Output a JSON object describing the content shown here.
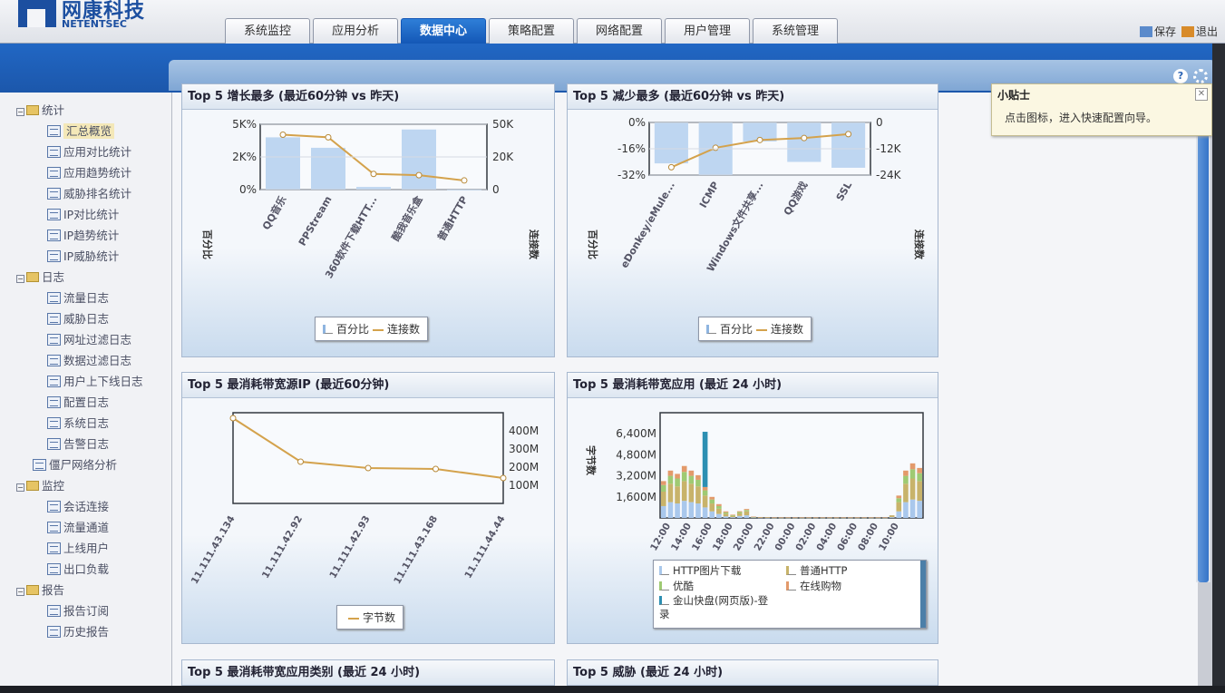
{
  "app": {
    "logo_cn": "网康科技",
    "logo_en": "NETENTSEC"
  },
  "nav": {
    "tabs": [
      {
        "label": "系统监控",
        "active": false
      },
      {
        "label": "应用分析",
        "active": false
      },
      {
        "label": "数据中心",
        "active": true
      },
      {
        "label": "策略配置",
        "active": false
      },
      {
        "label": "网络配置",
        "active": false
      },
      {
        "label": "用户管理",
        "active": false
      },
      {
        "label": "系统管理",
        "active": false
      }
    ],
    "save_label": "保存",
    "exit_label": "退出"
  },
  "sidebar": {
    "groups": [
      {
        "label": "统计",
        "items": [
          "汇总概览",
          "应用对比统计",
          "应用趋势统计",
          "威胁排名统计",
          "IP对比统计",
          "IP趋势统计",
          "IP威胁统计"
        ],
        "selected": 0
      },
      {
        "label": "日志",
        "items": [
          "流量日志",
          "威胁日志",
          "网址过滤日志",
          "数据过滤日志",
          "用户上下线日志",
          "配置日志",
          "系统日志",
          "告警日志"
        ]
      },
      {
        "label": "僵尸网络分析",
        "items": [],
        "leaf": true
      },
      {
        "label": "监控",
        "items": [
          "会话连接",
          "流量通道",
          "上线用户",
          "出口负载"
        ]
      },
      {
        "label": "报告",
        "items": [
          "报告订阅",
          "历史报告"
        ]
      }
    ]
  },
  "tooltip": {
    "title": "小贴士",
    "body": "点击图标，进入快速配置向导。"
  },
  "panels": {
    "p1": {
      "title": "Top 5 增长最多 (最近60分钟 vs 昨天)",
      "legend_bar": "百分比",
      "legend_line": "连接数",
      "left_axis": "百分比",
      "right_axis": "连接数"
    },
    "p2": {
      "title": "Top 5 减少最多 (最近60分钟 vs 昨天)",
      "legend_bar": "百分比",
      "legend_line": "连接数",
      "left_axis": "百分比",
      "right_axis": "连接数"
    },
    "p3": {
      "title": "Top 5 最消耗带宽源IP (最近60分钟)",
      "legend_line": "字节数"
    },
    "p4": {
      "title": "Top 5 最消耗带宽应用 (最近 24 小时)",
      "y_axis": "字节数",
      "legend": [
        "HTTP图片下载",
        "普通HTTP",
        "优酷",
        "在线购物",
        "金山快盘(网页版)-登录"
      ]
    },
    "p5": {
      "title": "Top 5 最消耗带宽应用类别 (最近 24 小时)"
    },
    "p6": {
      "title": "Top 5 威胁 (最近 24 小时)"
    }
  },
  "chart_data": [
    {
      "type": "bar",
      "title": "Top 5 增长最多 (最近60分钟 vs 昨天)",
      "categories": [
        "QQ音乐",
        "PPStream",
        "360软件下载HTT...",
        "酷我音乐盒",
        "普通HTTP"
      ],
      "series": [
        {
          "name": "百分比",
          "kind": "bar",
          "axis": "left",
          "values": [
            4000,
            3200,
            200,
            4600,
            0
          ]
        },
        {
          "name": "连接数",
          "kind": "line",
          "axis": "right",
          "values": [
            42000,
            40000,
            12000,
            11000,
            7000
          ]
        }
      ],
      "y_left_ticks": [
        "5K%",
        "2K%",
        "0%"
      ],
      "y_left_range": [
        0,
        5000
      ],
      "y_right_ticks": [
        "50K",
        "20K",
        "0"
      ],
      "y_right_range": [
        0,
        50000
      ],
      "ylabel_left": "百分比",
      "ylabel_right": "连接数"
    },
    {
      "type": "bar",
      "title": "Top 5 减少最多 (最近60分钟 vs 昨天)",
      "categories": [
        "eDonkey/eMule...",
        "ICMP",
        "Windows文件共享...",
        "QQ游戏",
        "SSL"
      ],
      "series": [
        {
          "name": "百分比",
          "kind": "bar",
          "axis": "left",
          "values": [
            -28,
            -36,
            -13,
            -27,
            -31
          ]
        },
        {
          "name": "连接数",
          "kind": "line",
          "axis": "right",
          "values": [
            -23000,
            -13000,
            -9000,
            -8000,
            -6000
          ]
        }
      ],
      "y_left_ticks": [
        "0%",
        "-16%",
        "-32%"
      ],
      "y_left_range": [
        -36,
        0
      ],
      "y_right_ticks": [
        "0",
        "-12K",
        "-24K"
      ],
      "y_right_range": [
        -27000,
        0
      ],
      "ylabel_left": "百分比",
      "ylabel_right": "连接数"
    },
    {
      "type": "line",
      "title": "Top 5 最消耗带宽源IP (最近60分钟)",
      "categories": [
        "11.111.43.134",
        "11.111.42.92",
        "11.111.42.93",
        "11.111.43.168",
        "11.111.44.44"
      ],
      "series": [
        {
          "name": "字节数",
          "values": [
            470,
            230,
            195,
            190,
            140
          ]
        }
      ],
      "y_ticks": [
        "400M",
        "300M",
        "200M",
        "100M"
      ],
      "y_range": [
        0,
        500
      ]
    },
    {
      "type": "bar",
      "stacked": true,
      "title": "Top 5 最消耗带宽应用 (最近 24 小时)",
      "ylabel": "字节数",
      "y_ticks": [
        "6,400M",
        "4,800M",
        "3,200M",
        "1,600M"
      ],
      "y_range": [
        0,
        8000
      ],
      "x_ticks": [
        "12:00",
        "14:00",
        "16:00",
        "18:00",
        "20:00",
        "22:00",
        "00:00",
        "02:00",
        "04:00",
        "06:00",
        "08:00",
        "10:00"
      ],
      "series": [
        {
          "name": "HTTP图片下载",
          "values": [
            900,
            1200,
            1100,
            1300,
            1200,
            1100,
            800,
            500,
            300,
            120,
            60,
            150,
            200,
            30,
            20,
            10,
            10,
            10,
            10,
            10,
            10,
            10,
            10,
            10,
            10,
            10,
            10,
            10,
            10,
            10,
            10,
            10,
            10,
            60,
            500,
            1200,
            1400,
            1300
          ]
        },
        {
          "name": "普通HTTP",
          "values": [
            1100,
            1400,
            1300,
            1500,
            1400,
            1300,
            900,
            600,
            400,
            200,
            100,
            200,
            300,
            40,
            30,
            20,
            10,
            10,
            10,
            10,
            10,
            10,
            10,
            10,
            10,
            10,
            10,
            10,
            10,
            10,
            10,
            10,
            10,
            80,
            700,
            1400,
            1600,
            1500
          ]
        },
        {
          "name": "优酷",
          "values": [
            500,
            600,
            600,
            700,
            600,
            500,
            400,
            300,
            200,
            100,
            50,
            100,
            100,
            20,
            10,
            10,
            10,
            10,
            10,
            10,
            10,
            10,
            10,
            10,
            10,
            10,
            10,
            10,
            10,
            10,
            10,
            10,
            10,
            40,
            300,
            600,
            700,
            600
          ]
        },
        {
          "name": "在线购物",
          "values": [
            300,
            400,
            350,
            450,
            400,
            350,
            250,
            200,
            150,
            80,
            40,
            60,
            80,
            10,
            10,
            10,
            10,
            10,
            10,
            10,
            10,
            10,
            10,
            10,
            10,
            10,
            10,
            10,
            10,
            10,
            10,
            10,
            10,
            20,
            200,
            400,
            450,
            400
          ]
        },
        {
          "name": "金山快盘(网页版)-登录",
          "values": [
            0,
            0,
            0,
            0,
            0,
            0,
            4200,
            0,
            0,
            0,
            0,
            0,
            0,
            0,
            0,
            0,
            0,
            0,
            0,
            0,
            0,
            0,
            0,
            0,
            0,
            0,
            0,
            0,
            0,
            0,
            0,
            0,
            0,
            0,
            0,
            0,
            0,
            0
          ]
        }
      ],
      "colors": [
        "#a9c8ec",
        "#c8b36a",
        "#9fca73",
        "#e39a6b",
        "#2d8fb2"
      ]
    }
  ]
}
